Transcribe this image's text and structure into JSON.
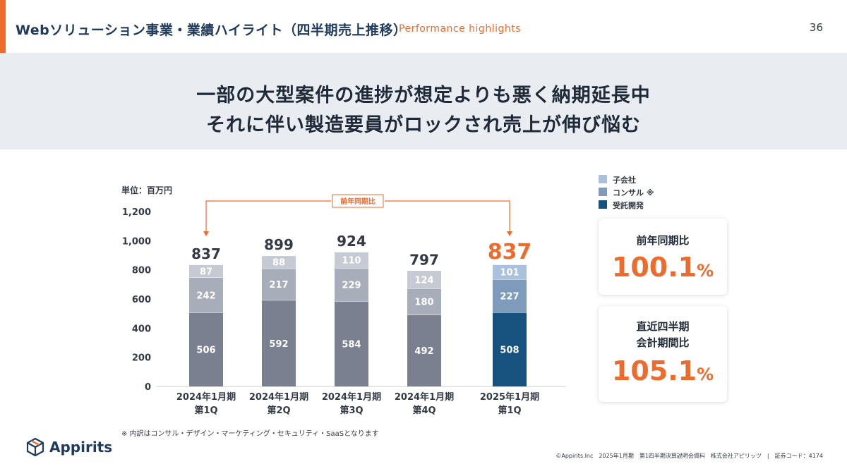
{
  "header": {
    "title": "Webソリューション事業・業績ハイライト（四半期売上推移）",
    "subtitle": "Performance highlights",
    "page_number": "36"
  },
  "banner": {
    "line1": "一部の大型案件の進捗が想定よりも悪く納期延長中",
    "line2": "それに伴い製造要員がロックされ売上が伸び悩む"
  },
  "legend": {
    "items": [
      {
        "label": "子会社",
        "color": "#a9c1dc"
      },
      {
        "label": "コンサル ※",
        "color": "#7f9bbb"
      },
      {
        "label": "受託開発",
        "color": "#17527e"
      }
    ]
  },
  "cards": {
    "yoy": {
      "label": "前年同期比",
      "value": "100.1",
      "unit": "%"
    },
    "qoq": {
      "label1": "直近四半期",
      "label2": "会計期間比",
      "value": "105.1",
      "unit": "%"
    }
  },
  "chart_data": {
    "type": "bar",
    "stacked": true,
    "unit_label": "単位：百万円",
    "categories": [
      [
        "2024年1月期",
        "第1Q"
      ],
      [
        "2024年1月期",
        "第2Q"
      ],
      [
        "2024年1月期",
        "第3Q"
      ],
      [
        "2024年1月期",
        "第4Q"
      ],
      [
        "2025年1月期",
        "第1Q"
      ]
    ],
    "series": [
      {
        "name": "受託開発",
        "values": [
          506,
          592,
          584,
          492,
          508
        ]
      },
      {
        "name": "コンサル ※",
        "values": [
          242,
          217,
          229,
          180,
          227
        ]
      },
      {
        "name": "子会社",
        "values": [
          87,
          88,
          110,
          124,
          101
        ]
      }
    ],
    "totals": [
      837,
      899,
      924,
      797,
      837
    ],
    "ylim": [
      0,
      1200
    ],
    "yticks": [
      0,
      200,
      400,
      600,
      800,
      1000,
      1200
    ],
    "ytick_labels": [
      "0",
      "200",
      "400",
      "600",
      "800",
      "1,000",
      "1,200"
    ],
    "highlight_index": 4,
    "annotation": {
      "label": "前年同期比",
      "from": 0,
      "to": 4
    },
    "colors": {
      "base": [
        "#7a8090",
        "#a7adb9",
        "#c6cad3"
      ],
      "highlight": [
        "#17527e",
        "#7f9bbb",
        "#a9c1dc"
      ],
      "accent": "#ec6b2d",
      "total_text": "#333a45"
    }
  },
  "footnote": "※ 内訳はコンサル・デザイン・マーケティング・セキュリティ・SaaSとなります",
  "logo": {
    "text": "Appirits"
  },
  "footer": "©Appirits.Inc　2025年1月期　第1四半期決算説明会資料　株式会社アピリッツ　|　証券コード：4174"
}
